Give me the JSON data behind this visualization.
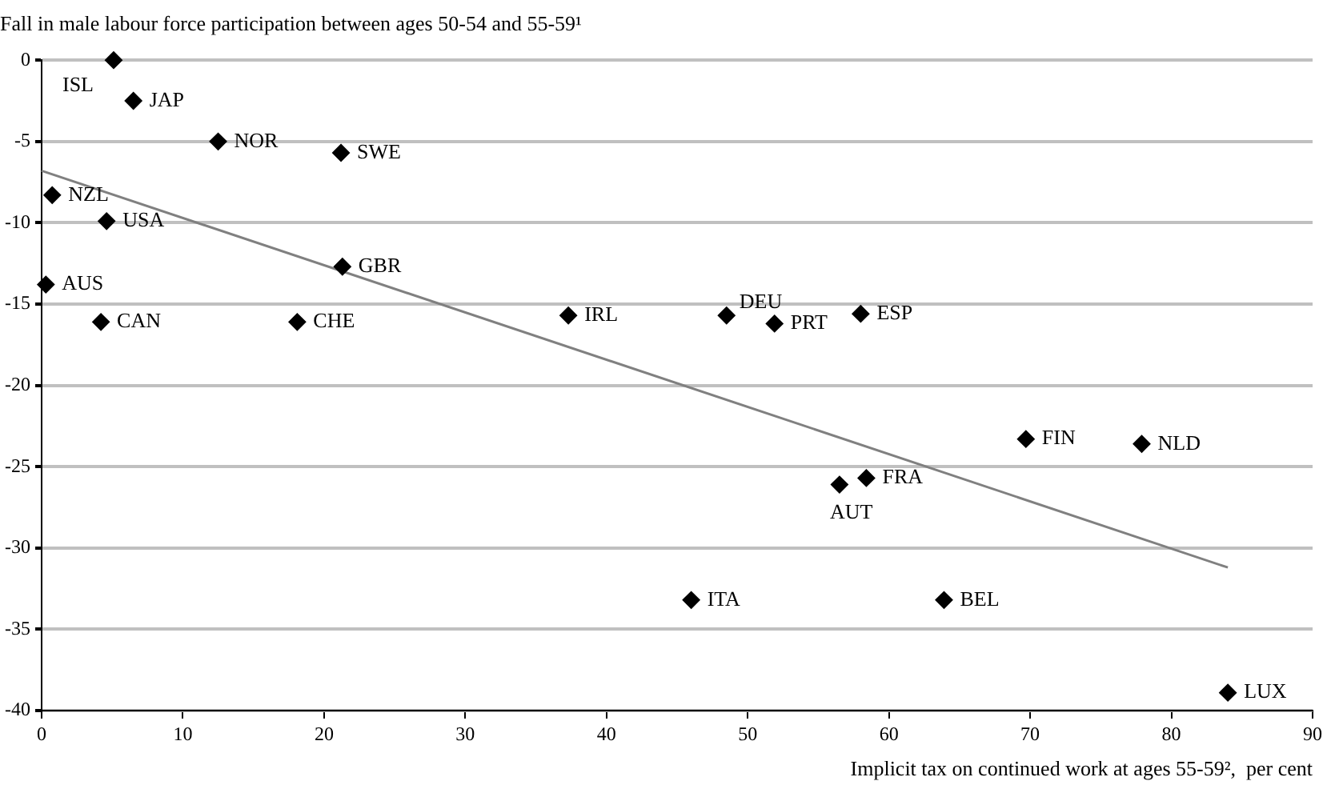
{
  "chart_data": {
    "type": "scatter",
    "title": "Fall in male labour force participation between ages 50-54 and 55-59¹",
    "xlabel": "Implicit tax on continued work at ages 55-59²,  per cent",
    "xlim": [
      0,
      90
    ],
    "xticks": [
      0,
      10,
      20,
      30,
      40,
      50,
      60,
      70,
      80,
      90
    ],
    "ylim": [
      -40,
      0
    ],
    "yticks": [
      -40,
      -35,
      -30,
      -25,
      -20,
      -15,
      -10,
      -5,
      0
    ],
    "grid": "y",
    "legend": false,
    "series": [
      {
        "marker": "diamond",
        "color": "#000000",
        "x": [
          5.1,
          6.5,
          12.5,
          21.2,
          0.75,
          4.6,
          0.3,
          4.2,
          18.1,
          21.3,
          37.3,
          48.5,
          51.9,
          58.0,
          69.7,
          77.9,
          56.5,
          58.4,
          46.0,
          63.9,
          84.0
        ],
        "values": [
          0,
          -2.5,
          -5.0,
          -5.7,
          -8.3,
          -9.9,
          -13.8,
          -16.1,
          -16.1,
          -12.7,
          -15.7,
          -15.7,
          -16.2,
          -15.6,
          -23.3,
          -23.6,
          -26.1,
          -25.7,
          -33.2,
          -33.2,
          -38.9
        ]
      },
      {
        "type": "line",
        "marker": "none",
        "color": "#808080",
        "x": [
          0,
          84
        ],
        "values": [
          -6.8,
          -31.2
        ]
      }
    ],
    "annotations": [
      {
        "text": "ISL",
        "x": 5.1,
        "y": 0
      },
      {
        "text": "JAP",
        "x": 6.5,
        "y": -2.5
      },
      {
        "text": "NOR",
        "x": 12.5,
        "y": -5.0
      },
      {
        "text": "SWE",
        "x": 21.2,
        "y": -5.7
      },
      {
        "text": "NZL",
        "x": 0.75,
        "y": -8.3
      },
      {
        "text": "USA",
        "x": 4.6,
        "y": -9.9
      },
      {
        "text": "AUS",
        "x": 0.3,
        "y": -13.8
      },
      {
        "text": "CAN",
        "x": 4.2,
        "y": -16.1
      },
      {
        "text": "CHE",
        "x": 18.1,
        "y": -16.1
      },
      {
        "text": "GBR",
        "x": 21.3,
        "y": -12.7
      },
      {
        "text": "IRL",
        "x": 37.3,
        "y": -15.7
      },
      {
        "text": "DEU",
        "x": 48.5,
        "y": -15.7
      },
      {
        "text": "PRT",
        "x": 51.9,
        "y": -16.2
      },
      {
        "text": "ESP",
        "x": 58.0,
        "y": -15.6
      },
      {
        "text": "FIN",
        "x": 69.7,
        "y": -23.3
      },
      {
        "text": "NLD",
        "x": 77.9,
        "y": -23.6
      },
      {
        "text": "AUT",
        "x": 56.5,
        "y": -26.1
      },
      {
        "text": "FRA",
        "x": 58.4,
        "y": -25.7
      },
      {
        "text": "ITA",
        "x": 46.0,
        "y": -33.2
      },
      {
        "text": "BEL",
        "x": 63.9,
        "y": -33.2
      },
      {
        "text": "LUX",
        "x": 84.0,
        "y": -38.9
      }
    ]
  }
}
